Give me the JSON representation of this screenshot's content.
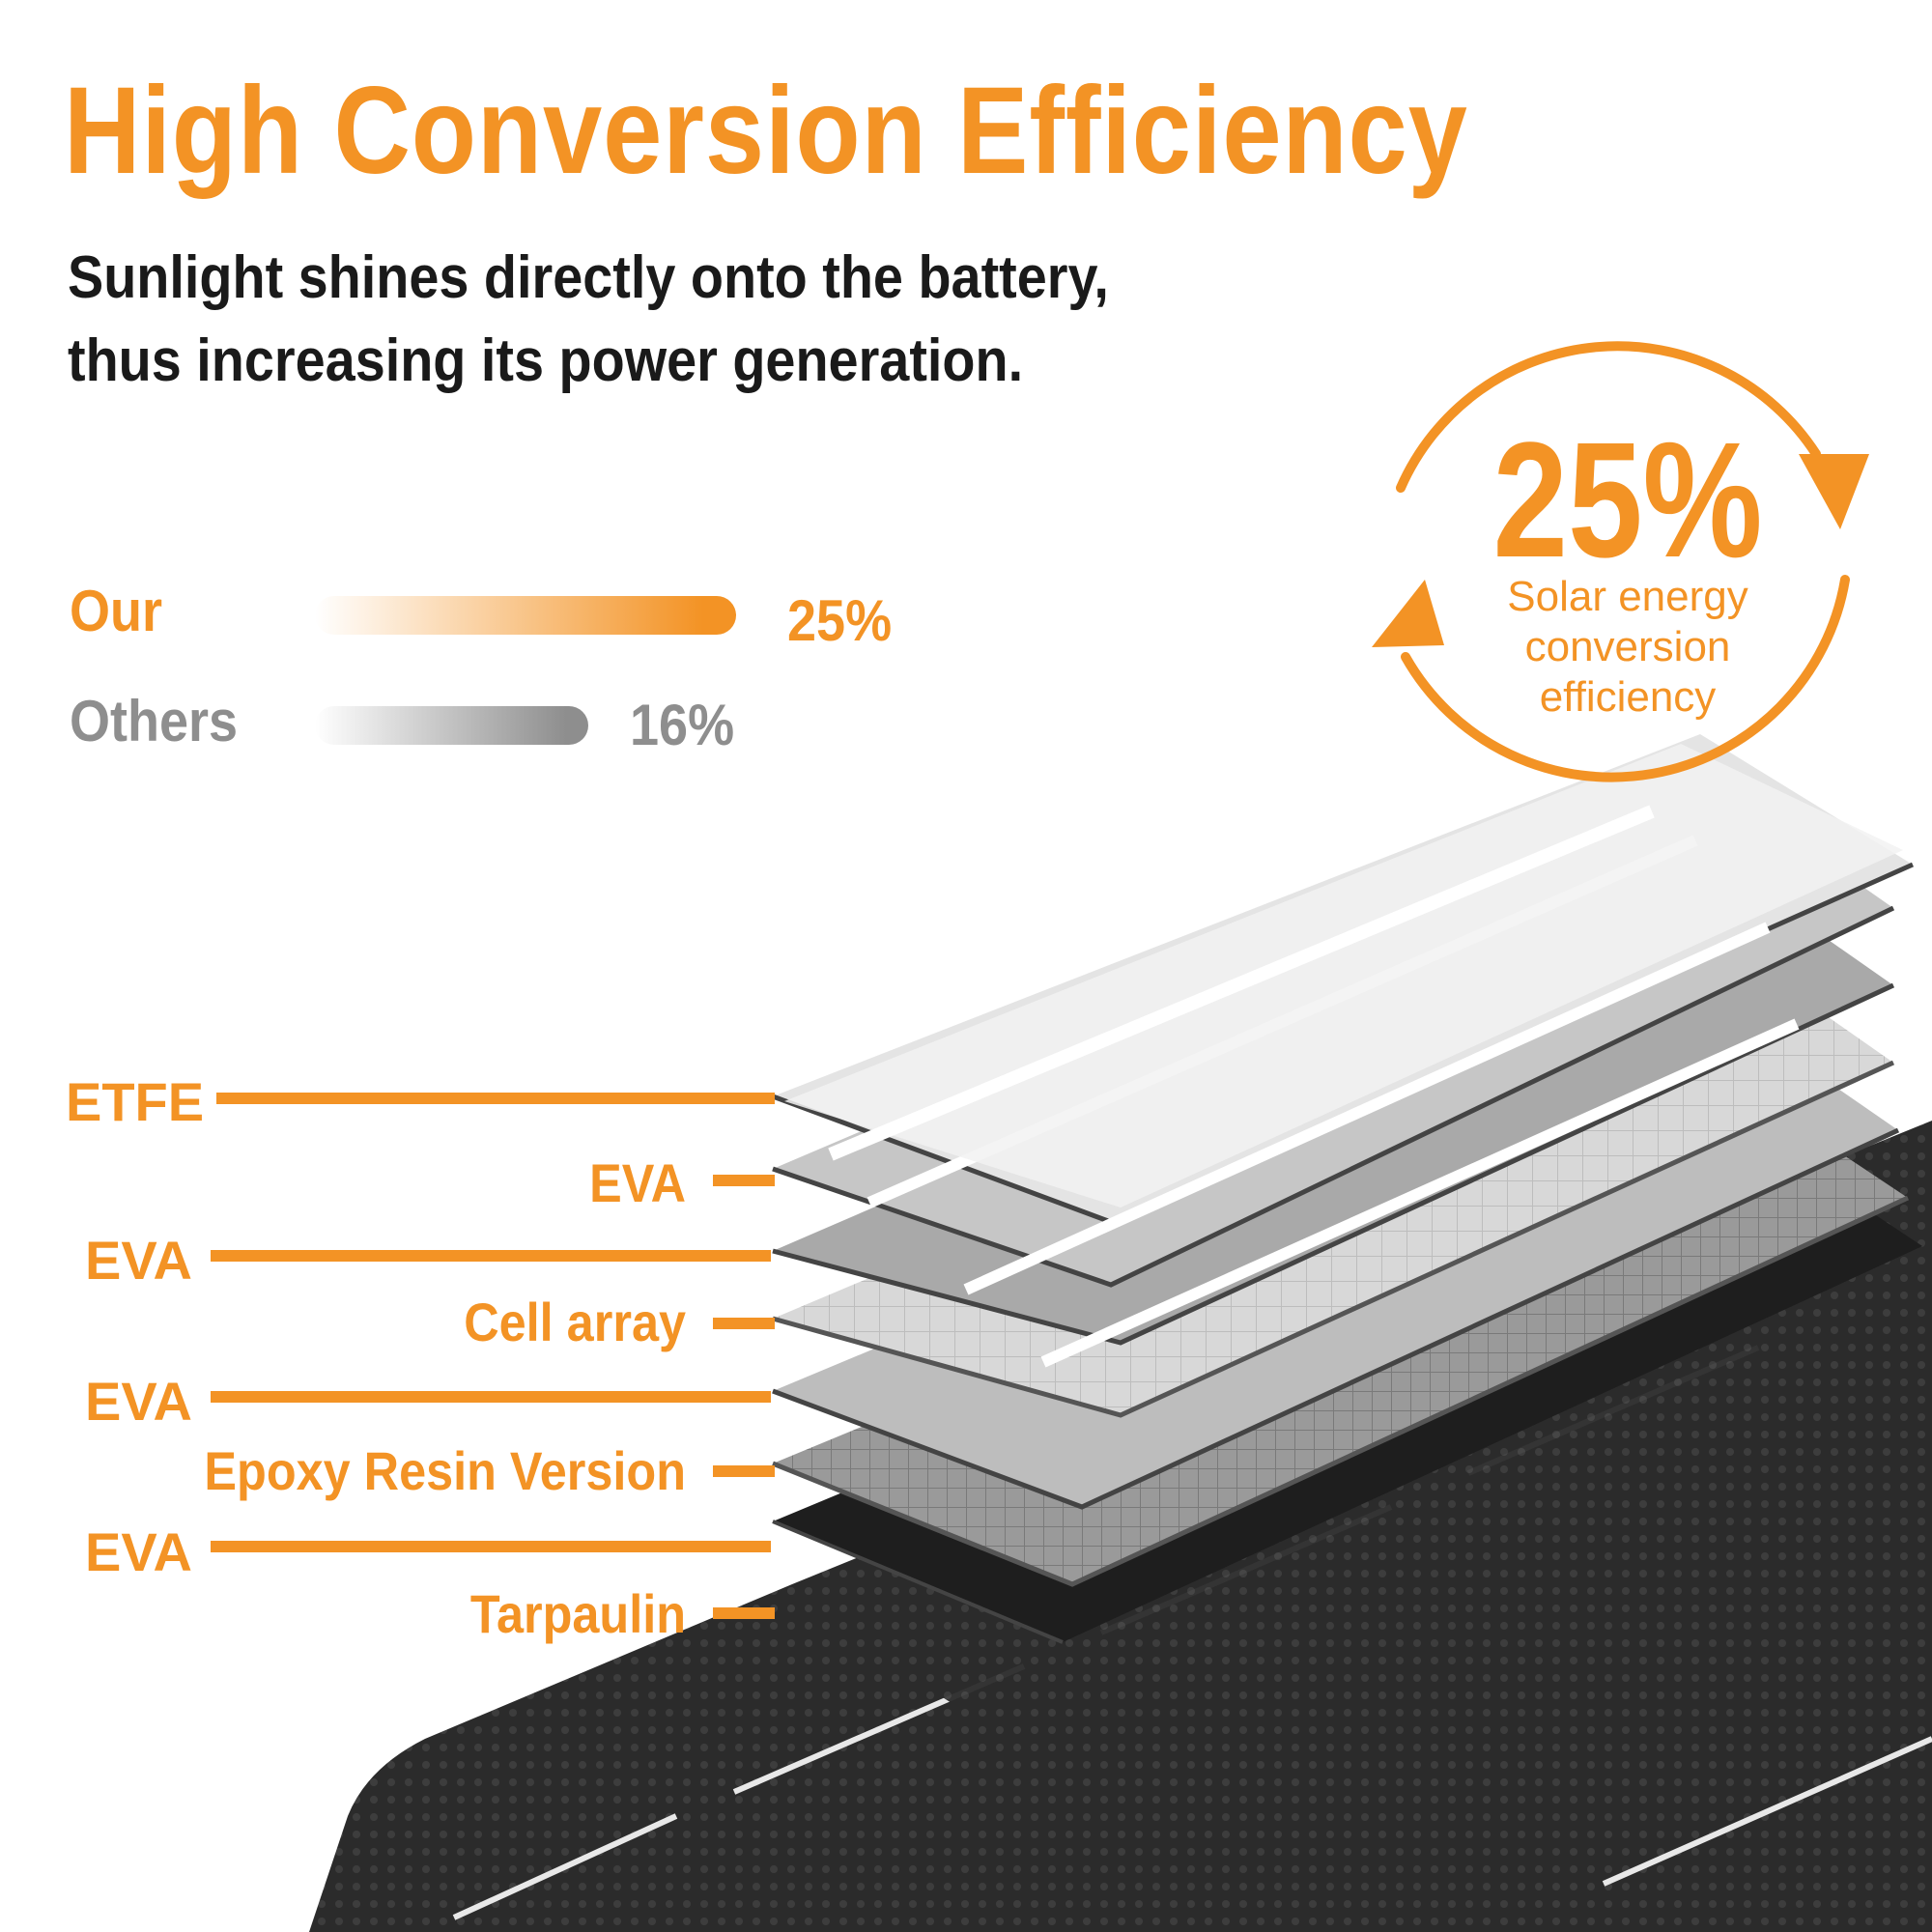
{
  "title": "High Conversion Efficiency",
  "subtitle": {
    "line1": "Sunlight shines directly onto the battery,",
    "line2": "thus increasing its power generation."
  },
  "comparison": {
    "our": {
      "label": "Our",
      "value": "25%",
      "fraction": 0.25,
      "color": "#f39325"
    },
    "others": {
      "label": "Others",
      "value": "16%",
      "fraction": 0.16,
      "color": "#8e8e8e"
    }
  },
  "badge": {
    "value": "25%",
    "caption": "Solar energy\nconversion\nefficiency"
  },
  "layers": [
    {
      "label": "ETFE"
    },
    {
      "label": "EVA"
    },
    {
      "label": "EVA"
    },
    {
      "label": "Cell array"
    },
    {
      "label": "EVA"
    },
    {
      "label": "Epoxy Resin Version"
    },
    {
      "label": "EVA"
    },
    {
      "label": "Tarpaulin"
    }
  ],
  "colors": {
    "accent": "#f39325",
    "text": "#1a1a1a",
    "muted": "#8e8e8e"
  }
}
